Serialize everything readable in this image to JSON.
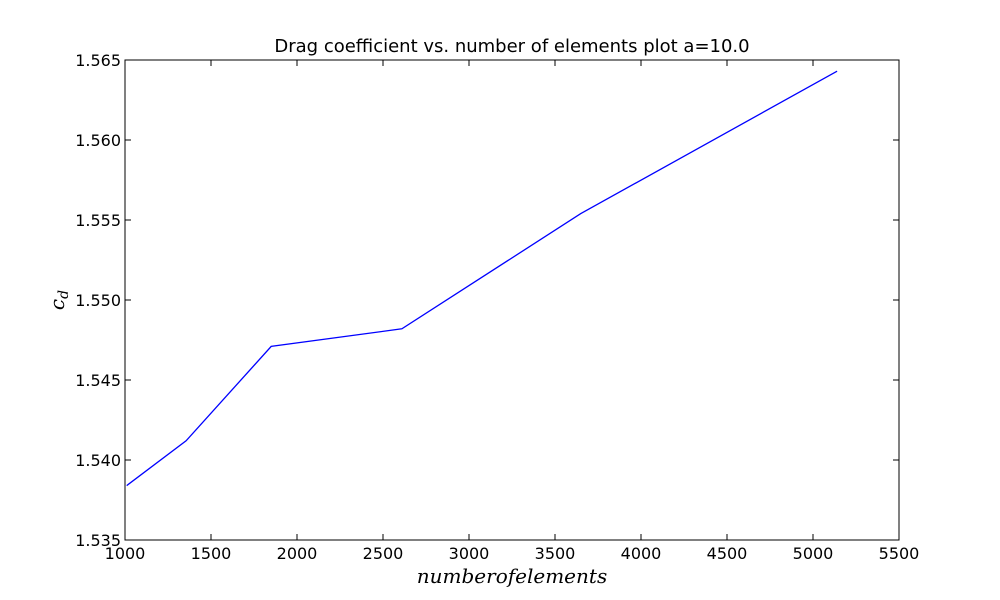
{
  "chart_data": {
    "type": "line",
    "title": "Drag coefficient vs. number of elements plot a=10.0",
    "xlabel": "numberofelements",
    "ylabel": "c",
    "ylabel_subscript": "d",
    "xlim": [
      1000,
      5500
    ],
    "ylim": [
      1.535,
      1.565
    ],
    "x_ticks": [
      1000,
      1500,
      2000,
      2500,
      3000,
      3500,
      4000,
      4500,
      5000,
      5500
    ],
    "y_ticks": [
      1.535,
      1.54,
      1.545,
      1.55,
      1.555,
      1.56,
      1.565
    ],
    "x_tick_labels": [
      "1000",
      "1500",
      "2000",
      "2500",
      "3000",
      "3500",
      "4000",
      "4500",
      "5000",
      "5500"
    ],
    "y_tick_labels": [
      "1.535",
      "1.540",
      "1.545",
      "1.550",
      "1.555",
      "1.560",
      "1.565"
    ],
    "grid": false,
    "series": [
      {
        "color": "#0000ff",
        "x": [
          1010,
          1355,
          1850,
          2610,
          3650,
          5140
        ],
        "y": [
          1.5384,
          1.5412,
          1.5471,
          1.5482,
          1.5554,
          1.5643
        ]
      }
    ]
  }
}
